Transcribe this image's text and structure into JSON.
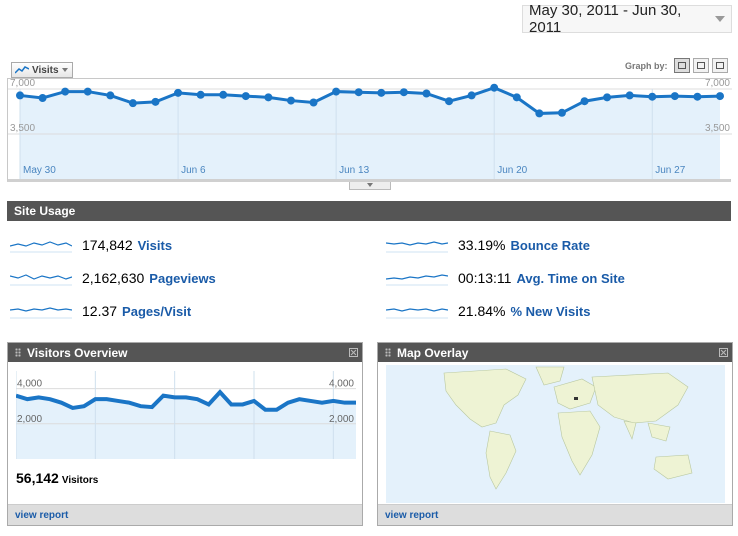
{
  "date_range": {
    "label": "May 30, 2011 - Jun 30, 2011"
  },
  "graph_controls": {
    "metric_label": "Visits",
    "graph_by_label": "Graph by:"
  },
  "chart_data": [
    {
      "type": "line",
      "x": [
        "May 30",
        "May 31",
        "Jun 1",
        "Jun 2",
        "Jun 3",
        "Jun 4",
        "Jun 5",
        "Jun 6",
        "Jun 7",
        "Jun 8",
        "Jun 9",
        "Jun 10",
        "Jun 11",
        "Jun 12",
        "Jun 13",
        "Jun 14",
        "Jun 15",
        "Jun 16",
        "Jun 17",
        "Jun 18",
        "Jun 19",
        "Jun 20",
        "Jun 21",
        "Jun 22",
        "Jun 23",
        "Jun 24",
        "Jun 25",
        "Jun 26",
        "Jun 27",
        "Jun 28",
        "Jun 29",
        "Jun 30"
      ],
      "x_tick_labels": [
        "May 30",
        "Jun 6",
        "Jun 13",
        "Jun 20",
        "Jun 27"
      ],
      "y_tick_labels_left": [
        "7,000",
        "3,500"
      ],
      "y_tick_labels_right": [
        "7,000",
        "3,500"
      ],
      "series": [
        {
          "values": [
            6500,
            6300,
            6800,
            6800,
            6500,
            5900,
            6000,
            6700,
            6550,
            6550,
            6450,
            6350,
            6100,
            5950,
            6800,
            6750,
            6700,
            6750,
            6650,
            6050,
            6500,
            7100,
            6350,
            5100,
            5150,
            6050,
            6350,
            6500,
            6400,
            6450,
            6400,
            6450
          ]
        }
      ],
      "ylim": [
        0,
        7000
      ],
      "colors": {
        "line": "#1a75c6",
        "fill": "#e4f1fb"
      }
    },
    {
      "type": "line",
      "y_tick_labels_left": [
        "4,000",
        "2,000"
      ],
      "y_tick_labels_right": [
        "4,000",
        "2,000"
      ],
      "series": [
        {
          "values": [
            3600,
            3400,
            3500,
            3400,
            3200,
            2900,
            3000,
            3400,
            3400,
            3300,
            3200,
            3000,
            2950,
            3600,
            3500,
            3500,
            3400,
            3100,
            3800,
            3100,
            3100,
            3300,
            2800,
            2800,
            3200,
            3400,
            3300,
            3200,
            3300,
            3200,
            3200
          ]
        }
      ],
      "ylim": [
        0,
        5000
      ],
      "colors": {
        "line": "#1a75c6",
        "fill": "#e4f1fb"
      }
    }
  ],
  "site_usage": {
    "title": "Site Usage",
    "metrics": [
      {
        "value": "174,842",
        "label": "Visits"
      },
      {
        "value": "2,162,630",
        "label": "Pageviews"
      },
      {
        "value": "12.37",
        "label": "Pages/Visit"
      },
      {
        "value": "33.19%",
        "label": "Bounce Rate"
      },
      {
        "value": "00:13:11",
        "label": "Avg. Time on Site"
      },
      {
        "value": "21.84%",
        "label": "% New Visits"
      }
    ]
  },
  "visitors_overview": {
    "title": "Visitors Overview",
    "count": "56,142",
    "count_unit": "Visitors",
    "link": "view report"
  },
  "map_overlay": {
    "title": "Map Overlay",
    "link": "view report"
  }
}
